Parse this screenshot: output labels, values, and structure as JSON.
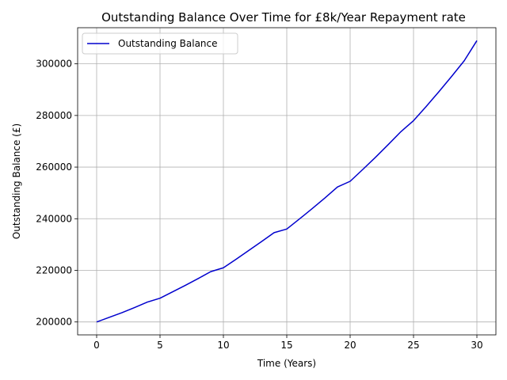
{
  "chart_data": {
    "type": "line",
    "title": "Outstanding Balance Over Time for £8k/Year Repayment rate",
    "xlabel": "Time (Years)",
    "ylabel": "Outstanding Balance (£)",
    "xlim": [
      -1.5,
      31.5
    ],
    "ylim": [
      195000,
      314000
    ],
    "x_ticks": [
      0,
      5,
      10,
      15,
      20,
      25,
      30
    ],
    "y_ticks": [
      200000,
      220000,
      240000,
      260000,
      280000,
      300000
    ],
    "grid": true,
    "legend_position": "top-left",
    "series": [
      {
        "name": "Outstanding Balance",
        "color": "#0000cd",
        "x": [
          0,
          1,
          2,
          3,
          4,
          5,
          6,
          7,
          8,
          9,
          10,
          11,
          12,
          13,
          14,
          15,
          16,
          17,
          18,
          19,
          20,
          21,
          22,
          23,
          24,
          25,
          26,
          27,
          28,
          29,
          30
        ],
        "y": [
          200000,
          201800,
          203600,
          205600,
          207700,
          209200,
          211700,
          214200,
          216800,
          219500,
          221000,
          224300,
          227700,
          231100,
          234600,
          236000,
          239900,
          243900,
          248000,
          252300,
          254500,
          259100,
          263800,
          268700,
          273700,
          278000,
          283500,
          289200,
          295100,
          301200,
          309000
        ]
      }
    ]
  }
}
